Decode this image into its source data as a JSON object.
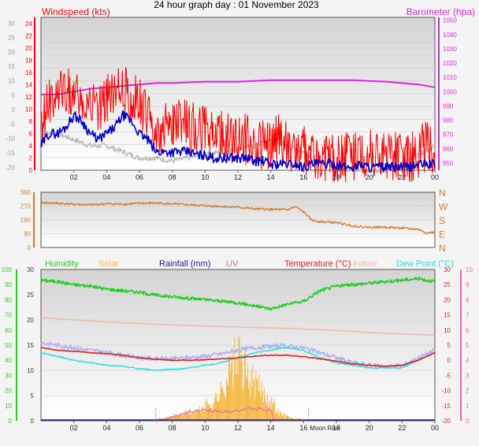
{
  "title": "24 hour graph day : 01 November 2023",
  "colors": {
    "wind": "#ff0000",
    "wind_avg": "#0000cc",
    "barometer": "#dd22dd",
    "grey": "#b8b8b8",
    "direction": "#d07a2a",
    "humidity": "#22cc22",
    "solar": "#f4b840",
    "rainfall": "#1a1a8c",
    "uv": "#ee66aa",
    "temperature": "#d82020",
    "indoor": "#f0b8a0",
    "dewpoint": "#22dddd",
    "lavender": "#aab0f0"
  },
  "chart_data": [
    {
      "type": "line",
      "name": "wind-barometer",
      "left_label": "Windspeed (kts)",
      "right_label": "Barometer (hpa)",
      "x_ticks": [
        "02",
        "04",
        "06",
        "08",
        "10",
        "12",
        "14",
        "16",
        "18",
        "20",
        "22",
        "00"
      ],
      "xlim": [
        0,
        24
      ],
      "left_ticks": [
        "0",
        "2",
        "4",
        "6",
        "8",
        "10",
        "12",
        "14",
        "16",
        "18",
        "20",
        "22",
        "24"
      ],
      "ylim_left": [
        0,
        25
      ],
      "right_ticks": [
        "950",
        "960",
        "970",
        "980",
        "990",
        "1000",
        "1010",
        "1020",
        "1030",
        "1040",
        "1050"
      ],
      "ylim_right": [
        945,
        1052
      ],
      "outer_ticks": [
        "-20",
        "-15",
        "-10",
        "-5",
        "0",
        "5",
        "10",
        "15",
        "20",
        "25",
        "30"
      ],
      "ylim_outer": [
        -21,
        32
      ],
      "series": [
        {
          "x": [
            0,
            0.5,
            1,
            1.5,
            2,
            2.5,
            3,
            3.5,
            4,
            4.5,
            5,
            5.5,
            6,
            6.5,
            7,
            7.5,
            8,
            8.5,
            9,
            9.5,
            10,
            10.5,
            11,
            11.5,
            12,
            12.5,
            13,
            13.5,
            14,
            14.5,
            15,
            15.5,
            16,
            16.5,
            17,
            17.5,
            18,
            18.5,
            19,
            19.5,
            20,
            20.5,
            21,
            21.5,
            22,
            22.5,
            23,
            23.5,
            24
          ],
          "y": [
            7,
            11,
            12,
            13,
            12,
            11,
            12,
            10,
            12,
            12,
            13,
            12,
            11,
            8,
            7,
            7,
            8,
            8,
            7,
            7,
            7,
            6,
            6,
            5,
            5,
            5,
            5,
            4,
            4,
            5,
            4,
            3,
            3,
            3,
            2,
            2,
            2,
            2,
            2,
            2,
            3,
            2,
            2,
            2,
            2,
            2,
            3,
            4,
            3
          ]
        },
        {
          "x": [
            0,
            0.5,
            1,
            1.5,
            2,
            2.5,
            3,
            3.5,
            4,
            4.5,
            5,
            5.5,
            6,
            6.5,
            7,
            7.5,
            8,
            8.5,
            9,
            9.5,
            10,
            10.5,
            11,
            11.5,
            12,
            12.5,
            13,
            13.5,
            14,
            14.5,
            15,
            15.5,
            16,
            16.5,
            17,
            17.5,
            18,
            18.5,
            19,
            19.5,
            20,
            20.5,
            21,
            21.5,
            22,
            22.5,
            23,
            23.5,
            24
          ],
          "y": [
            4,
            6,
            6,
            7,
            9,
            8,
            6,
            5,
            6,
            7,
            9,
            8,
            6,
            5,
            3,
            3,
            3,
            3,
            3,
            2.5,
            2.5,
            2,
            2,
            2,
            2,
            2,
            1.5,
            1.5,
            1,
            1,
            1,
            1,
            0.5,
            1,
            1,
            1,
            1,
            0.5,
            0.5,
            1,
            0.5,
            0.5,
            0.5,
            0.5,
            0.5,
            0.5,
            1,
            1,
            1
          ]
        },
        {
          "x": [
            0,
            1,
            2,
            3,
            4,
            5,
            6,
            7,
            8,
            9,
            10,
            11,
            12,
            13,
            14,
            15,
            16,
            17,
            18,
            19,
            20,
            21,
            22,
            23,
            24
          ],
          "y": [
            998,
            998,
            1000,
            1002,
            1003,
            1004,
            1005,
            1006,
            1006,
            1006.5,
            1007,
            1007,
            1007,
            1007.5,
            1008,
            1008,
            1008,
            1008,
            1008,
            1008,
            1007.5,
            1007,
            1006,
            1005,
            1003
          ]
        },
        {
          "x": [
            0,
            1,
            2,
            3,
            4,
            5,
            6,
            7,
            8,
            9,
            10,
            11,
            12,
            13,
            14,
            15,
            16,
            17,
            18,
            19,
            20,
            21,
            22,
            23,
            24
          ],
          "y": [
            6,
            6,
            5,
            4,
            4,
            3,
            2,
            2,
            1.5,
            2,
            2.5,
            3,
            3.5,
            4,
            5,
            4,
            3,
            1.5,
            0.5,
            0,
            0,
            0,
            1,
            2.5,
            4
          ]
        }
      ]
    },
    {
      "type": "line",
      "name": "wind-direction",
      "left_ticks": [
        "0",
        "90",
        "180",
        "270",
        "360"
      ],
      "ylim": [
        0,
        360
      ],
      "right_ticks": [
        "N",
        "E",
        "S",
        "W",
        "N"
      ],
      "series": [
        {
          "x": [
            0,
            1,
            2,
            3,
            4,
            5,
            6,
            7,
            8,
            9,
            10,
            11,
            12,
            13,
            14,
            15,
            15.5,
            16,
            16.5,
            17,
            18,
            19,
            20,
            21,
            22,
            23,
            23.5,
            24
          ],
          "y": [
            292,
            288,
            282,
            278,
            285,
            282,
            288,
            290,
            283,
            278,
            272,
            268,
            262,
            252,
            248,
            246,
            265,
            232,
            178,
            168,
            162,
            140,
            132,
            132,
            126,
            118,
            95,
            98
          ]
        }
      ]
    },
    {
      "type": "line",
      "name": "temperature-humidity",
      "legend": [
        "Humidity",
        "Solar",
        "Rainfall (mm)",
        "UV",
        "Temperature (°C)",
        "Indoor",
        "Dew Point (°C)"
      ],
      "left_ticks": [
        "0",
        "10",
        "20",
        "30",
        "40",
        "50",
        "60",
        "70",
        "80",
        "90",
        "100"
      ],
      "ylim_humidity": [
        0,
        100
      ],
      "inner_ticks": [
        "0",
        "5",
        "10",
        "15",
        "20",
        "25",
        "30"
      ],
      "ylim_temp": [
        0,
        30
      ],
      "right_ticks": [
        "-20",
        "-15",
        "-10",
        "-5",
        "0",
        "5",
        "10",
        "15",
        "20",
        "25",
        "30"
      ],
      "ylim_right": [
        -20,
        30
      ],
      "uv_ticks": [
        "0",
        "1",
        "2",
        "3",
        "4",
        "5",
        "6",
        "7",
        "8",
        "9",
        "10"
      ],
      "ylim_uv": [
        0,
        10
      ],
      "annotation": "Moon Rise",
      "series": [
        {
          "x": [
            0,
            1,
            2,
            3,
            4,
            5,
            6,
            7,
            8,
            9,
            10,
            11,
            12,
            13,
            14,
            15,
            16,
            17,
            18,
            19,
            20,
            21,
            22,
            23,
            24
          ],
          "y": [
            93,
            92,
            90,
            89,
            87,
            86,
            85,
            83,
            82,
            81,
            80,
            79,
            78,
            76,
            74,
            77,
            79,
            86,
            89,
            90,
            91,
            92,
            93,
            94,
            92
          ]
        },
        {
          "x": [
            0,
            1,
            2,
            3,
            4,
            5,
            6,
            7,
            8,
            9,
            10,
            11,
            12,
            13,
            14,
            15,
            16,
            17,
            18,
            19,
            20,
            21,
            22,
            23,
            24
          ],
          "y": [
            15.5,
            15,
            14.5,
            14,
            13.5,
            13,
            12.5,
            12.3,
            12.3,
            12.5,
            12.8,
            13.3,
            14,
            14.5,
            14.8,
            14.8,
            14.5,
            13.5,
            12.5,
            11.5,
            11,
            10.8,
            11,
            12.5,
            14
          ]
        },
        {
          "x": [
            0,
            1,
            2,
            3,
            4,
            5,
            6,
            7,
            8,
            9,
            10,
            11,
            12,
            13,
            14,
            15,
            16,
            17,
            18,
            19,
            20,
            21,
            22,
            23,
            24
          ],
          "y": [
            14.5,
            14,
            13.8,
            13.5,
            13.3,
            13,
            12.5,
            12.2,
            12,
            12,
            12.1,
            12.3,
            12.5,
            12.8,
            13,
            13,
            12.7,
            12.3,
            11.8,
            11.3,
            11,
            10.8,
            11,
            12,
            13.5
          ]
        },
        {
          "x": [
            0,
            1,
            2,
            3,
            4,
            5,
            6,
            7,
            8,
            9,
            10,
            11,
            12,
            13,
            14,
            15,
            16,
            17,
            18,
            19,
            20,
            21,
            22,
            23,
            24
          ],
          "y": [
            13.5,
            12.8,
            12,
            11.5,
            11,
            10.8,
            10.3,
            10,
            10.2,
            10.5,
            11,
            11.5,
            12.5,
            13.5,
            14,
            14.5,
            14,
            12.5,
            11.5,
            11,
            10.5,
            10.5,
            10.5,
            12,
            13.5
          ]
        },
        {
          "x": [
            0,
            2,
            4,
            6,
            8,
            10,
            12,
            14,
            16,
            18,
            20,
            22,
            24
          ],
          "y": [
            20.5,
            20,
            19.6,
            19.3,
            19,
            18.8,
            18.6,
            18.4,
            18.2,
            17.9,
            17.5,
            17.2,
            17
          ]
        },
        {
          "x": [
            6.8,
            7.5,
            8,
            8.5,
            9,
            9.5,
            10,
            10.5,
            11,
            11.5,
            12,
            12.5,
            13,
            13.5,
            14,
            14.5,
            15,
            15.5,
            16,
            16.2
          ],
          "y": [
            0.2,
            0.5,
            1.2,
            1.5,
            2,
            2.2,
            3.5,
            4.5,
            7,
            12,
            15,
            11,
            9,
            7,
            5,
            2,
            1,
            0.5,
            0.3,
            0
          ]
        },
        {
          "x": [
            7,
            8,
            9,
            10,
            11,
            12,
            13,
            14,
            14.2
          ],
          "y": [
            0,
            0.2,
            0.6,
            0.7,
            0.6,
            0.7,
            0.8,
            0.7,
            0
          ]
        }
      ]
    }
  ]
}
